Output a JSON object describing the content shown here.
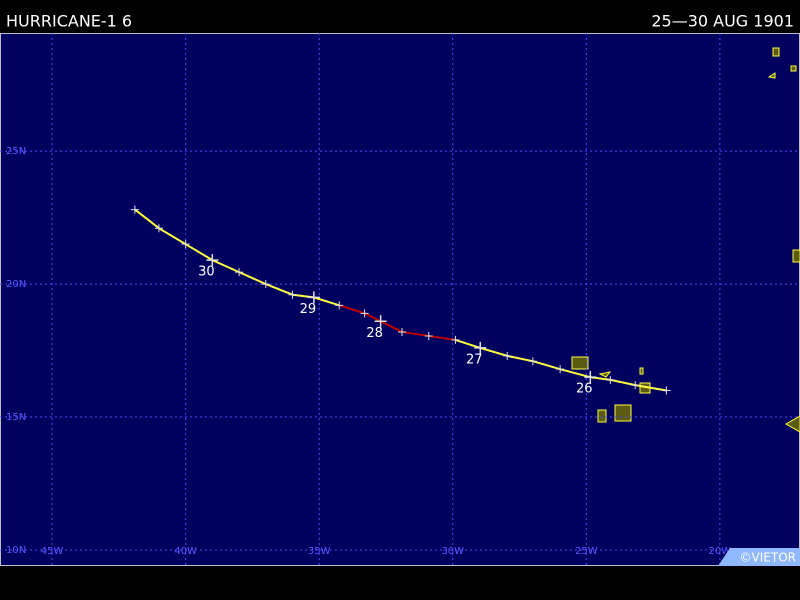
{
  "header": {
    "title": "HURRICANE-1 6",
    "dates": "25—30 AUG 1901"
  },
  "map": {
    "lonlim": [
      -46.95,
      -17.0
    ],
    "latlim": [
      29.44,
      9.4
    ],
    "lonticks": [
      {
        "value": -45,
        "label": "45W"
      },
      {
        "value": -40,
        "label": "40W"
      },
      {
        "value": -35,
        "label": "35W"
      },
      {
        "value": -30,
        "label": "30W"
      },
      {
        "value": -25,
        "label": "25W"
      },
      {
        "value": -20,
        "label": "20W"
      }
    ],
    "latticks": [
      {
        "value": 25,
        "label": "25N"
      },
      {
        "value": 20,
        "label": "20N"
      },
      {
        "value": 15,
        "label": "15N"
      },
      {
        "value": 10,
        "label": "10N"
      }
    ],
    "grid_color": "#4a4aff",
    "track": {
      "lon": [
        -22.0,
        -23.17,
        -24.1,
        -24.85,
        -25.98,
        -27.0,
        -27.96,
        -28.97,
        -29.9,
        -30.9,
        -31.9,
        -32.7,
        -33.3,
        -34.25,
        -35.2,
        -36.0,
        -37.0,
        -38.0,
        -39.0,
        -40.0,
        -41.0,
        -41.9
      ],
      "lat": [
        16.0,
        16.2,
        16.4,
        16.5,
        16.8,
        17.1,
        17.3,
        17.6,
        17.9,
        18.05,
        18.2,
        18.6,
        18.9,
        19.2,
        19.5,
        19.6,
        20.0,
        20.45,
        20.9,
        21.5,
        22.1,
        22.8
      ],
      "color": [
        "#ffff40",
        "#ffff40",
        "#ffff40",
        "#ffff40",
        "#ffff40",
        "#ffff40",
        "#ffff40",
        "#ffff40",
        "#c00000",
        "#c00000",
        "#c00000",
        "#c00000",
        "#c00000",
        "#ffff40",
        "#ffff40",
        "#ffff40",
        "#ffff40",
        "#ffff40",
        "#ffff40",
        "#ffff40",
        "#ffff40",
        "#ffff40"
      ],
      "labels": [
        null,
        null,
        null,
        "26",
        null,
        null,
        null,
        "27",
        null,
        null,
        null,
        "28",
        null,
        null,
        "29",
        null,
        null,
        null,
        "30",
        null,
        null,
        null
      ]
    },
    "credit": "©VIETOR"
  }
}
